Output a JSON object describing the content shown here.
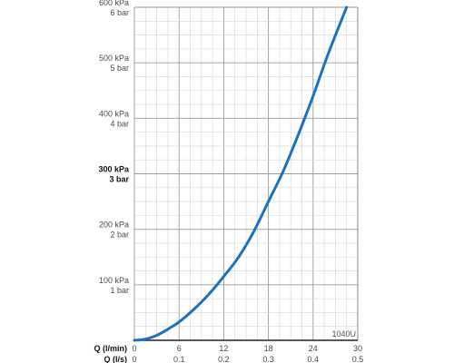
{
  "chart_data": {
    "type": "line",
    "title": "",
    "chart_code": "1040U",
    "x_axis": {
      "unit_label_primary": "Q (l/min)",
      "unit_label_secondary": "Q (l/s)",
      "range": [
        0,
        30
      ],
      "ticks_primary": [
        "0",
        "6",
        "12",
        "18",
        "24",
        "30"
      ],
      "ticks_secondary": [
        "0",
        "0.1",
        "0.2",
        "0.3",
        "0.4",
        "0.5"
      ],
      "minor_step": 1.5
    },
    "y_axis": {
      "range_kpa": [
        0,
        600
      ],
      "ticks": [
        {
          "kpa": 600,
          "kpa_label": "600 kPa",
          "bar_label": "6 bar",
          "bold": false
        },
        {
          "kpa": 500,
          "kpa_label": "500 kPa",
          "bar_label": "5 bar",
          "bold": false
        },
        {
          "kpa": 400,
          "kpa_label": "400 kPa",
          "bar_label": "4 bar",
          "bold": false
        },
        {
          "kpa": 300,
          "kpa_label": "300 kPa",
          "bar_label": "3 bar",
          "bold": true
        },
        {
          "kpa": 200,
          "kpa_label": "200 kPa",
          "bar_label": "2 bar",
          "bold": false
        },
        {
          "kpa": 100,
          "kpa_label": "100 kPa",
          "bar_label": "1 bar",
          "bold": false
        }
      ],
      "minor_step": 25
    },
    "grid": true,
    "series": [
      {
        "color": "#1a72c0",
        "x": [
          0,
          1,
          2,
          3,
          4,
          6,
          8,
          10,
          12,
          14,
          16,
          18,
          20,
          22,
          24,
          26,
          28.5
        ],
        "y": [
          0,
          1,
          4,
          9,
          16,
          33,
          56,
          83,
          115,
          150,
          195,
          250,
          305,
          370,
          440,
          515,
          600
        ]
      }
    ]
  }
}
